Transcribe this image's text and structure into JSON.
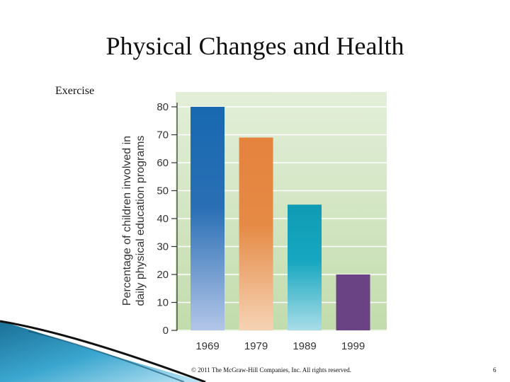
{
  "slide": {
    "title": "Physical Changes and Health",
    "subtitle": "Exercise",
    "footer": "© 2011 The McGraw-Hill Companies, Inc. All rights reserved.",
    "page_number": "6"
  },
  "chart_data": {
    "type": "bar",
    "categories": [
      "1969",
      "1979",
      "1989",
      "1999"
    ],
    "values": [
      80,
      69,
      45,
      20
    ],
    "title": "",
    "xlabel": "",
    "ylabel": "Percentage of children involved in daily physical education programs",
    "ylabel_lines": [
      "Percentage of children involved in",
      "daily physical education programs"
    ],
    "ylim": [
      0,
      80
    ],
    "yticks": [
      0,
      10,
      20,
      30,
      40,
      50,
      60,
      70,
      80
    ],
    "grid": true,
    "legend": "none",
    "bar_colors": [
      {
        "top": "#1769b0",
        "mid": "#2a6fb5",
        "bottom": "#b3c6e8"
      },
      {
        "top": "#e5833d",
        "mid": "#e58a45",
        "bottom": "#f6d3b5"
      },
      {
        "top": "#0f9bb3",
        "mid": "#17a7c0",
        "bottom": "#a9dde8"
      },
      {
        "top": "#6a4385",
        "mid": "#6a4385",
        "bottom": "#6a4385"
      }
    ],
    "plot_background": {
      "top": "#e3efd9",
      "bottom": "#c2dcac"
    },
    "grid_color": "#ffffff"
  }
}
